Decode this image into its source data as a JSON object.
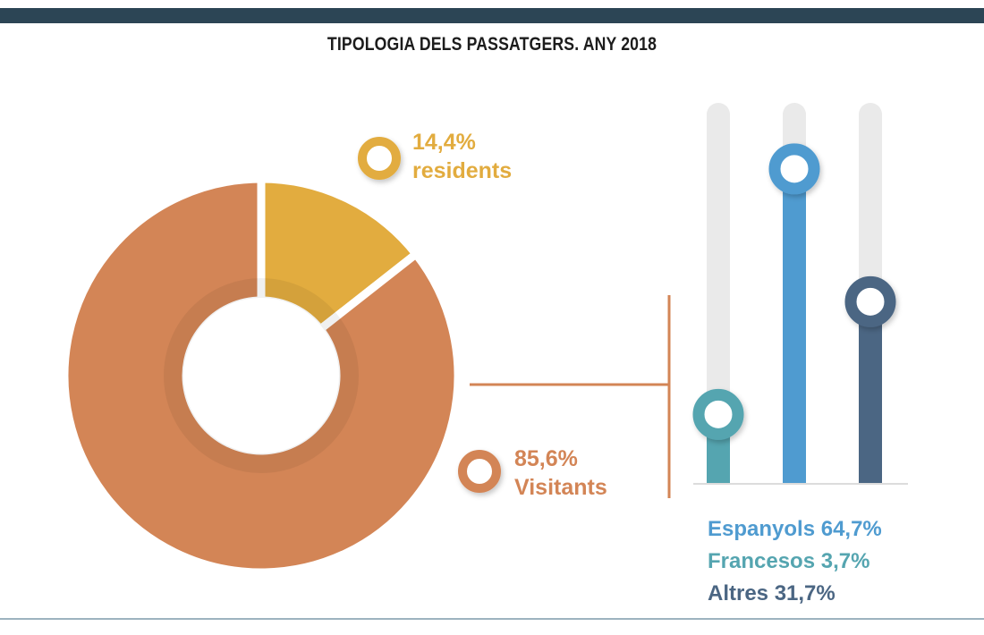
{
  "chart_data": [
    {
      "type": "pie",
      "title": "TIPOLOGIA DELS PASSATGERS. ANY 2018",
      "slices": [
        {
          "value": 14.4,
          "value_label": "14,4%",
          "name": "residents",
          "color": "#e2ac3f"
        },
        {
          "value": 85.6,
          "value_label": "85,6%",
          "name": "Visitants",
          "color": "#d38556"
        }
      ]
    },
    {
      "type": "bar",
      "categories": [
        "Francesos",
        "Espanyols",
        "Altres"
      ],
      "values": [
        3.7,
        64.7,
        31.7
      ],
      "ylim": [
        0,
        100
      ],
      "colors": [
        "#55a5b0",
        "#4f9bd0",
        "#4b6683"
      ],
      "legend": [
        {
          "text": "Espanyols 64,7%",
          "color": "#4f9bd0"
        },
        {
          "text": "Francesos 3,7%",
          "color": "#55a5b0"
        },
        {
          "text": "Altres 31,7%",
          "color": "#4b6683"
        }
      ]
    }
  ]
}
